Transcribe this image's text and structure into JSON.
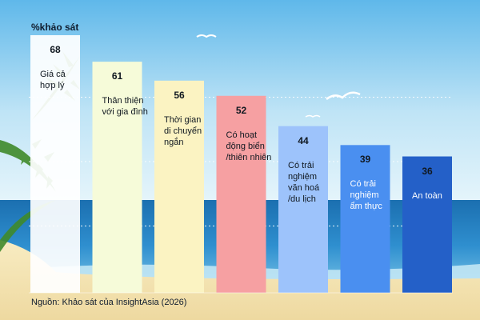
{
  "chart_data": {
    "type": "bar",
    "ylabel": "%khảo sát",
    "categories": [
      [
        "Giá cả",
        "hợp lý"
      ],
      [
        "Thân thiện",
        "với gia đình"
      ],
      [
        "Thời gian",
        "di chuyển",
        "ngắn"
      ],
      [
        "Có hoạt",
        "động biển",
        "/thiên nhiên"
      ],
      [
        "Có trải",
        "nghiệm",
        "văn hoá",
        "/du lịch"
      ],
      [
        "Có trải",
        "nghiệm",
        "ẩm thực"
      ],
      [
        "An toàn"
      ]
    ],
    "values": [
      68,
      61,
      56,
      52,
      44,
      39,
      36
    ],
    "bar_colors": [
      "#ffffff",
      "#f6fbd9",
      "#fbf3c2",
      "#f6a0a2",
      "#9dc3fb",
      "#4a8ff0",
      "#2460c8"
    ],
    "label_colors": [
      "#101820",
      "#101820",
      "#101820",
      "#101820",
      "#101820",
      "#ffffff",
      "#ffffff"
    ],
    "ylim": [
      0,
      68
    ],
    "grid": "dashed",
    "source": "Nguồn: Khảo sát của InsightAsia (2026)"
  }
}
